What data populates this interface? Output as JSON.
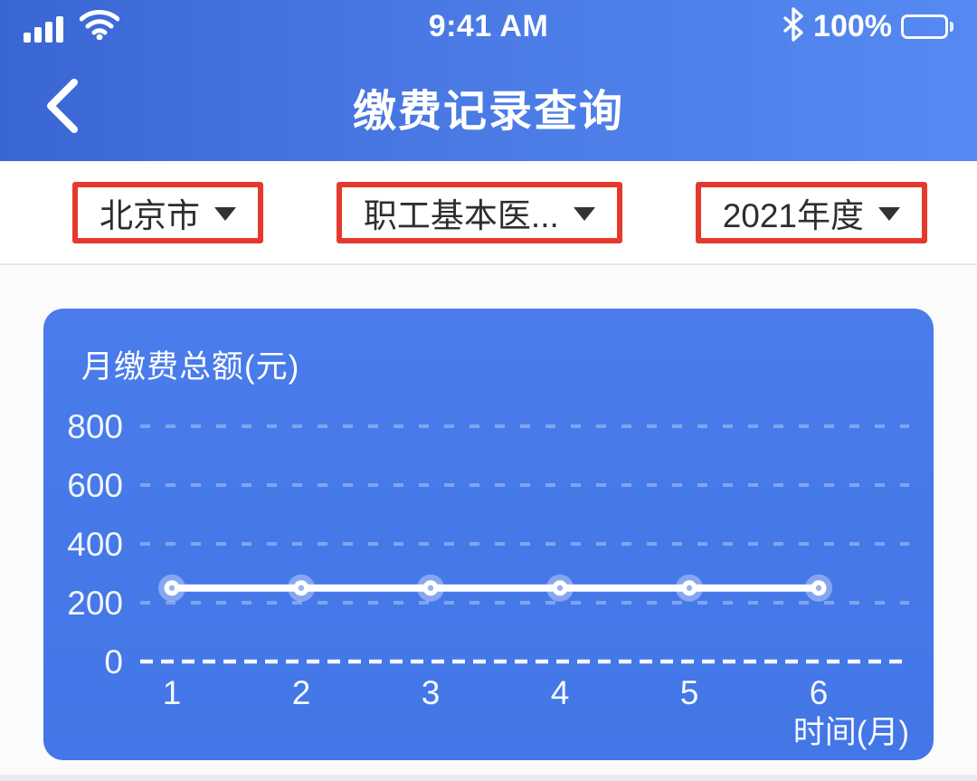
{
  "status_bar": {
    "time": "9:41 AM",
    "battery_percent": "100%",
    "signal_icon": "cellular-signal-4-bars",
    "wifi_icon": "wifi-full",
    "bluetooth_icon": "bluetooth",
    "battery_icon": "battery-full"
  },
  "header": {
    "title": "缴费记录查询",
    "back_icon": "chevron-left"
  },
  "filters": [
    {
      "label": "北京市",
      "name": "city"
    },
    {
      "label": "职工基本医...",
      "name": "insurance-plan"
    },
    {
      "label": "2021年度",
      "name": "year"
    }
  ],
  "chart_data": {
    "type": "line",
    "title": "月缴费总额(元)",
    "xlabel": "时间(月)",
    "ylabel": "月缴费总额(元)",
    "categories": [
      "1",
      "2",
      "3",
      "4",
      "5",
      "6"
    ],
    "values": [
      250,
      250,
      250,
      250,
      250,
      250
    ],
    "yticks": [
      0,
      200,
      400,
      600,
      800
    ],
    "ylim": [
      0,
      900
    ],
    "grid": "dashed-horizontal",
    "legend": "none",
    "line_color": "#ffffff",
    "point_color": "#ffffff",
    "point_center_color": "#9ab4f0",
    "background_color": "#4478e8"
  },
  "colors": {
    "header_gradient_start": "#3a66d4",
    "header_gradient_end": "#5689f2",
    "highlight_red": "#e5392e",
    "card_blue": "#4478e8",
    "text_dark": "#2e2e2e",
    "white": "#ffffff"
  }
}
